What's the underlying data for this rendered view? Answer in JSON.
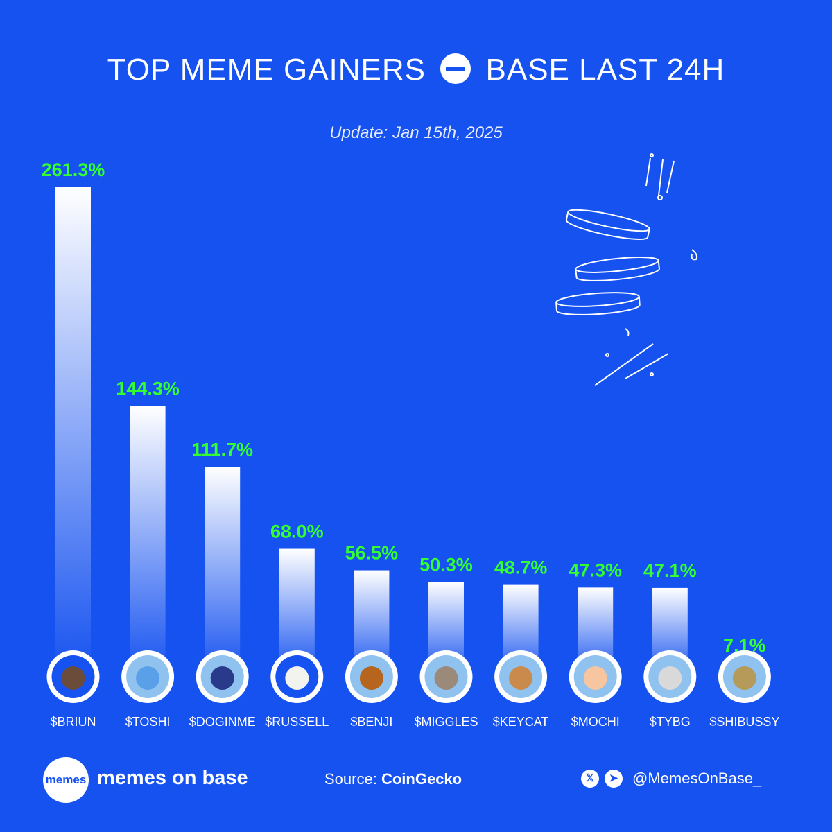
{
  "header": {
    "title_left": "TOP MEME GAINERS",
    "title_right": "BASE LAST 24H",
    "subtitle": "Update: Jan 15th, 2025"
  },
  "chart_data": {
    "type": "bar",
    "title": "TOP MEME GAINERS BASE LAST 24H",
    "categories": [
      "$BRIUN",
      "$TOSHI",
      "$DOGINME",
      "$RUSSELL",
      "$BENJI",
      "$MIGGLES",
      "$KEYCAT",
      "$MOCHI",
      "$TYBG",
      "$SHIBUSSY"
    ],
    "values": [
      261.3,
      144.3,
      111.7,
      68.0,
      56.5,
      50.3,
      48.7,
      47.3,
      47.1,
      7.1
    ],
    "labels": [
      "261.3%",
      "144.3%",
      "111.7%",
      "68.0%",
      "56.5%",
      "50.3%",
      "48.7%",
      "47.3%",
      "47.1%",
      "7.1%"
    ],
    "grid": false,
    "bar_color": "#ffffff",
    "label_color": "#33ff33"
  },
  "avatars": [
    "otter",
    "fox",
    "dog",
    "white-dog",
    "corgi",
    "cat",
    "keyboard-cat",
    "kitten",
    "man",
    "shiba"
  ],
  "footer": {
    "logo_text": "memes",
    "brand": "memes on base",
    "source_label": "Source:",
    "source_name": "CoinGecko",
    "handle": "@MemesOnBase_"
  },
  "colors": {
    "background": "#1652f0",
    "value_label": "#33ff33"
  }
}
